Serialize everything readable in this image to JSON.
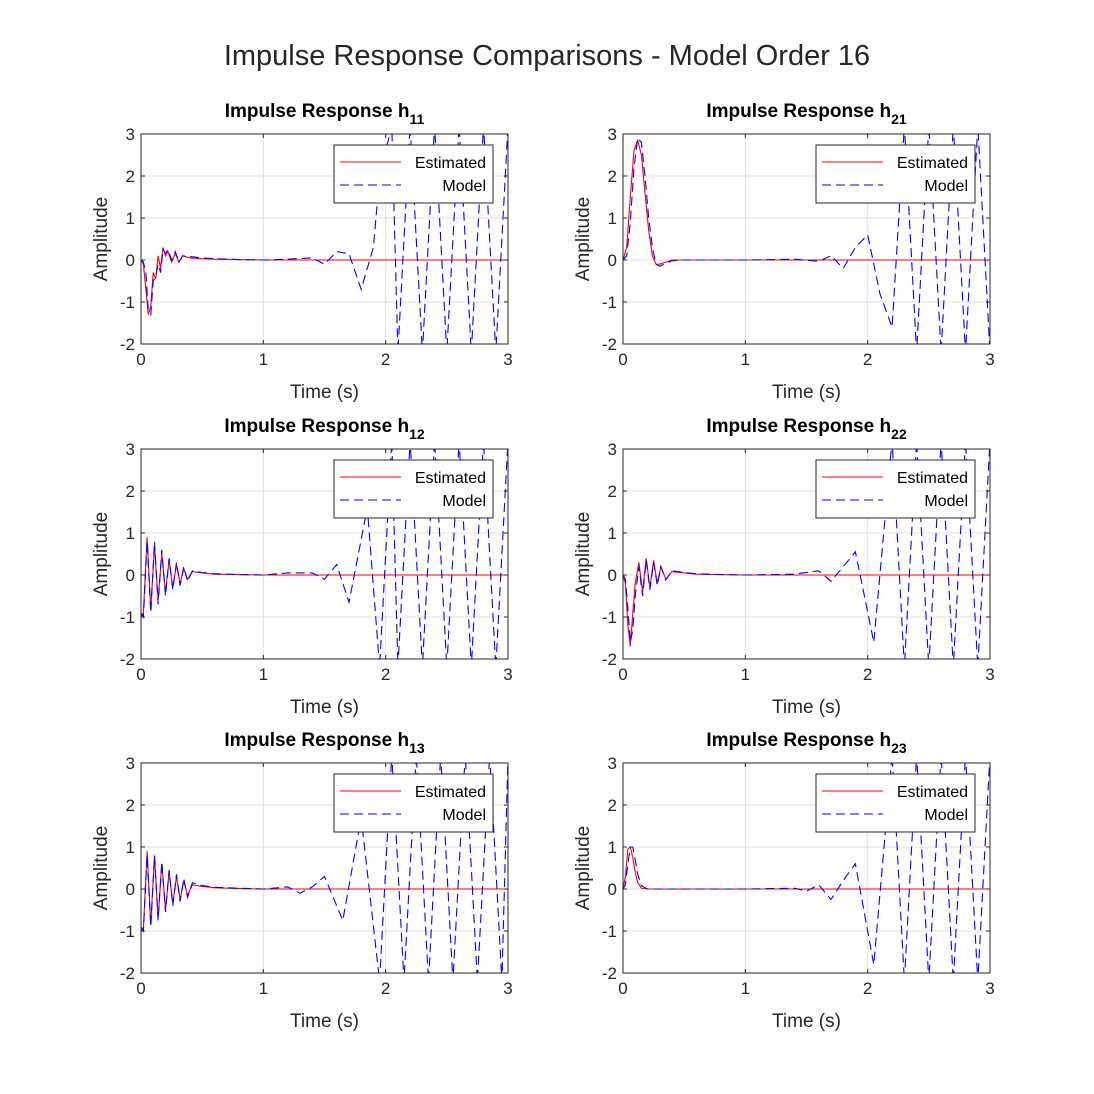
{
  "figure": {
    "title": "Impulse Response Comparisons - Model Order 16",
    "colors": {
      "estimated": "#ff0000",
      "model": "#0000ff",
      "grid": "#dfdfdf",
      "axis": "#262626"
    }
  },
  "chart_data": [
    {
      "type": "line",
      "title_main": "Impulse Response h",
      "title_sub": "11",
      "xlabel": "Time (s)",
      "ylabel": "Amplitude",
      "xlim": [
        0,
        3
      ],
      "ylim": [
        -2,
        3
      ],
      "xticks": [
        "0",
        "1",
        "2",
        "3"
      ],
      "yticks": [
        "-2",
        "-1",
        "0",
        "1",
        "2",
        "3"
      ],
      "grid": true,
      "legend": "top-right",
      "series": [
        {
          "name": "Estimated",
          "style": "solid",
          "color": "#ff0000",
          "x": [
            0,
            0.02,
            0.04,
            0.06,
            0.08,
            0.1,
            0.12,
            0.14,
            0.16,
            0.18,
            0.2,
            0.22,
            0.25,
            0.28,
            0.31,
            0.34,
            0.4,
            0.5,
            0.6,
            0.8,
            1.0,
            1.5,
            2.0,
            2.5,
            3.0
          ],
          "y": [
            0,
            -0.1,
            -0.7,
            -1.3,
            -1.1,
            -0.3,
            -0.45,
            0.1,
            -0.2,
            0.3,
            0.1,
            0.2,
            -0.05,
            0.15,
            -0.05,
            0.1,
            0.05,
            0.03,
            0.02,
            0.01,
            0,
            0,
            0,
            0,
            0
          ]
        },
        {
          "name": "Model",
          "style": "dashed",
          "color": "#0000ff",
          "x": [
            0,
            0.02,
            0.04,
            0.06,
            0.08,
            0.1,
            0.12,
            0.14,
            0.16,
            0.18,
            0.2,
            0.22,
            0.25,
            0.28,
            0.31,
            0.34,
            0.4,
            0.5,
            0.6,
            0.8,
            1.0,
            1.2,
            1.4,
            1.5,
            1.6,
            1.7,
            1.8,
            1.9,
            1.95,
            2.05,
            2.1,
            2.2,
            2.3,
            2.4,
            2.5,
            2.6,
            2.7,
            2.8,
            2.9,
            3.0
          ],
          "y": [
            0,
            -0.05,
            -0.3,
            -1.2,
            -1.3,
            -0.5,
            -0.4,
            -0.1,
            -0.3,
            0.25,
            0.15,
            0.25,
            0,
            0.2,
            -0.05,
            0.1,
            0.08,
            0.05,
            0.03,
            0.01,
            0,
            0.02,
            0.05,
            -0.1,
            0.2,
            0.15,
            -0.7,
            0.3,
            2.0,
            3.2,
            -2.2,
            3.2,
            -2.2,
            3.2,
            -2.2,
            3.2,
            -2.2,
            3.2,
            -2.2,
            3.2
          ]
        }
      ]
    },
    {
      "type": "line",
      "title_main": "Impulse Response h",
      "title_sub": "21",
      "xlabel": "Time (s)",
      "ylabel": "Amplitude",
      "xlim": [
        0,
        3
      ],
      "ylim": [
        -2,
        3
      ],
      "xticks": [
        "0",
        "1",
        "2",
        "3"
      ],
      "yticks": [
        "-2",
        "-1",
        "0",
        "1",
        "2",
        "3"
      ],
      "grid": true,
      "legend": "top-right",
      "series": [
        {
          "name": "Estimated",
          "style": "solid",
          "color": "#ff0000",
          "x": [
            0,
            0.03,
            0.06,
            0.09,
            0.12,
            0.15,
            0.18,
            0.21,
            0.24,
            0.27,
            0.3,
            0.35,
            0.4,
            0.5,
            1.0,
            1.5,
            2.0,
            2.5,
            3.0
          ],
          "y": [
            0,
            0.3,
            1.5,
            2.6,
            2.85,
            2.5,
            1.6,
            0.7,
            0.1,
            -0.1,
            -0.1,
            -0.05,
            0,
            0,
            0,
            0,
            0,
            0,
            0
          ]
        },
        {
          "name": "Model",
          "style": "dashed",
          "color": "#0000ff",
          "x": [
            0,
            0.03,
            0.06,
            0.09,
            0.12,
            0.15,
            0.18,
            0.21,
            0.24,
            0.27,
            0.3,
            0.35,
            0.4,
            0.5,
            1.0,
            1.4,
            1.6,
            1.7,
            1.8,
            1.9,
            2.0,
            2.1,
            2.2,
            2.3,
            2.4,
            2.5,
            2.6,
            2.7,
            2.8,
            2.9,
            3.0
          ],
          "y": [
            0,
            0.1,
            0.9,
            2.2,
            2.9,
            2.8,
            2.0,
            1.0,
            0.3,
            -0.1,
            -0.15,
            -0.08,
            -0.02,
            0,
            0,
            0.02,
            -0.03,
            0.1,
            -0.2,
            0.3,
            0.6,
            -0.8,
            -1.6,
            3.2,
            -2.2,
            3.2,
            -2.2,
            3.2,
            -2.2,
            3.2,
            -2.2
          ]
        }
      ]
    },
    {
      "type": "line",
      "title_main": "Impulse Response h",
      "title_sub": "12",
      "xlabel": "Time (s)",
      "ylabel": "Amplitude",
      "xlim": [
        0,
        3
      ],
      "ylim": [
        -2,
        3
      ],
      "xticks": [
        "0",
        "1",
        "2",
        "3"
      ],
      "yticks": [
        "-2",
        "-1",
        "0",
        "1",
        "2",
        "3"
      ],
      "grid": true,
      "legend": "top-right",
      "series": [
        {
          "name": "Estimated",
          "style": "solid",
          "color": "#ff0000",
          "x": [
            0,
            0.02,
            0.05,
            0.08,
            0.11,
            0.14,
            0.17,
            0.2,
            0.23,
            0.26,
            0.29,
            0.32,
            0.35,
            0.38,
            0.42,
            0.5,
            0.6,
            0.8,
            1.0,
            1.5,
            2.0,
            2.5,
            3.0
          ],
          "y": [
            -1.0,
            -0.9,
            0.9,
            -0.8,
            0.7,
            -0.6,
            0.5,
            -0.4,
            0.35,
            -0.3,
            0.25,
            -0.2,
            0.15,
            -0.1,
            0.08,
            0.05,
            0.02,
            0.01,
            0,
            0,
            0,
            0,
            0
          ]
        },
        {
          "name": "Model",
          "style": "dashed",
          "color": "#0000ff",
          "x": [
            0,
            0.02,
            0.05,
            0.08,
            0.11,
            0.14,
            0.17,
            0.2,
            0.23,
            0.26,
            0.29,
            0.32,
            0.35,
            0.38,
            0.42,
            0.5,
            0.6,
            0.8,
            1.0,
            1.2,
            1.4,
            1.5,
            1.6,
            1.7,
            1.85,
            1.95,
            2.05,
            2.1,
            2.2,
            2.3,
            2.4,
            2.5,
            2.6,
            2.7,
            2.8,
            2.9,
            3.0
          ],
          "y": [
            -0.9,
            -1.0,
            0.8,
            -0.9,
            0.8,
            -0.7,
            0.6,
            -0.5,
            0.4,
            -0.35,
            0.3,
            -0.25,
            0.2,
            -0.15,
            0.1,
            0.06,
            0.03,
            0.01,
            0,
            0.05,
            0.05,
            -0.1,
            0.25,
            -0.65,
            1.6,
            -2.2,
            3.2,
            -2.2,
            3.2,
            -2.2,
            3.2,
            -2.2,
            3.2,
            -2.2,
            3.2,
            -2.2,
            3.2
          ]
        }
      ]
    },
    {
      "type": "line",
      "title_main": "Impulse Response h",
      "title_sub": "22",
      "xlabel": "Time (s)",
      "ylabel": "Amplitude",
      "xlim": [
        0,
        3
      ],
      "ylim": [
        -2,
        3
      ],
      "xticks": [
        "0",
        "1",
        "2",
        "3"
      ],
      "yticks": [
        "-2",
        "-1",
        "0",
        "1",
        "2",
        "3"
      ],
      "grid": true,
      "legend": "top-right",
      "series": [
        {
          "name": "Estimated",
          "style": "solid",
          "color": "#ff0000",
          "x": [
            0,
            0.02,
            0.04,
            0.06,
            0.08,
            0.1,
            0.13,
            0.16,
            0.19,
            0.22,
            0.25,
            0.28,
            0.31,
            0.35,
            0.4,
            0.5,
            0.6,
            0.8,
            1.0,
            1.5,
            2.0,
            2.5,
            3.0
          ],
          "y": [
            0,
            -0.2,
            -1.2,
            -1.7,
            -0.9,
            -0.2,
            0.3,
            -0.4,
            0.4,
            -0.3,
            0.35,
            -0.2,
            0.2,
            -0.1,
            0.08,
            0.05,
            0.02,
            0.01,
            0,
            0,
            0,
            0,
            0
          ]
        },
        {
          "name": "Model",
          "style": "dashed",
          "color": "#0000ff",
          "x": [
            0,
            0.02,
            0.04,
            0.06,
            0.08,
            0.1,
            0.13,
            0.16,
            0.19,
            0.22,
            0.25,
            0.28,
            0.31,
            0.35,
            0.4,
            0.5,
            0.6,
            0.8,
            1.0,
            1.4,
            1.6,
            1.7,
            1.8,
            1.9,
            2.05,
            2.2,
            2.3,
            2.4,
            2.5,
            2.6,
            2.7,
            2.8,
            2.9,
            3.0
          ],
          "y": [
            0,
            -0.1,
            -0.8,
            -1.6,
            -1.3,
            -0.5,
            0.2,
            -0.5,
            0.35,
            -0.35,
            0.3,
            -0.25,
            0.2,
            -0.12,
            0.1,
            0.06,
            0.03,
            0.01,
            0,
            0.02,
            0.1,
            -0.15,
            0.2,
            0.55,
            -1.6,
            3.2,
            -2.2,
            3.2,
            -2.2,
            3.2,
            -2.2,
            3.2,
            -2.2,
            3.2
          ]
        }
      ]
    },
    {
      "type": "line",
      "title_main": "Impulse Response h",
      "title_sub": "13",
      "xlabel": "Time (s)",
      "ylabel": "Amplitude",
      "xlim": [
        0,
        3
      ],
      "ylim": [
        -2,
        3
      ],
      "xticks": [
        "0",
        "1",
        "2",
        "3"
      ],
      "yticks": [
        "-2",
        "-1",
        "0",
        "1",
        "2",
        "3"
      ],
      "grid": true,
      "legend": "top-right",
      "series": [
        {
          "name": "Estimated",
          "style": "solid",
          "color": "#ff0000",
          "x": [
            0,
            0.02,
            0.05,
            0.08,
            0.11,
            0.14,
            0.17,
            0.2,
            0.23,
            0.26,
            0.29,
            0.32,
            0.35,
            0.38,
            0.42,
            0.5,
            0.6,
            0.8,
            1.0,
            1.5,
            2.0,
            2.5,
            3.0
          ],
          "y": [
            -1.0,
            -0.95,
            0.9,
            -0.85,
            0.8,
            -0.7,
            0.6,
            -0.5,
            0.4,
            -0.35,
            0.3,
            -0.25,
            0.2,
            -0.15,
            0.1,
            0.06,
            0.03,
            0.01,
            0,
            0,
            0,
            0,
            0
          ]
        },
        {
          "name": "Model",
          "style": "dashed",
          "color": "#0000ff",
          "x": [
            0,
            0.02,
            0.05,
            0.08,
            0.11,
            0.14,
            0.17,
            0.2,
            0.23,
            0.26,
            0.29,
            0.32,
            0.35,
            0.38,
            0.42,
            0.5,
            0.6,
            0.8,
            1.0,
            1.2,
            1.3,
            1.4,
            1.5,
            1.65,
            1.8,
            1.95,
            2.05,
            2.15,
            2.25,
            2.35,
            2.45,
            2.55,
            2.65,
            2.75,
            2.85,
            2.95,
            3.0
          ],
          "y": [
            -0.9,
            -1.0,
            0.8,
            -0.9,
            0.8,
            -0.75,
            0.65,
            -0.55,
            0.45,
            -0.4,
            0.35,
            -0.3,
            0.25,
            -0.2,
            0.15,
            0.08,
            0.04,
            0.02,
            0,
            0.05,
            -0.1,
            0.05,
            0.3,
            -0.75,
            1.7,
            -2.2,
            3.2,
            -2.2,
            3.2,
            -2.2,
            3.2,
            -2.2,
            3.2,
            -2.2,
            3.2,
            -2.2,
            3.2
          ]
        }
      ]
    },
    {
      "type": "line",
      "title_main": "Impulse Response h",
      "title_sub": "23",
      "xlabel": "Time (s)",
      "ylabel": "Amplitude",
      "xlim": [
        0,
        3
      ],
      "ylim": [
        -2,
        3
      ],
      "xticks": [
        "0",
        "1",
        "2",
        "3"
      ],
      "yticks": [
        "-2",
        "-1",
        "0",
        "1",
        "2",
        "3"
      ],
      "grid": true,
      "legend": "top-right",
      "series": [
        {
          "name": "Estimated",
          "style": "solid",
          "color": "#ff0000",
          "x": [
            0,
            0.02,
            0.04,
            0.06,
            0.08,
            0.1,
            0.12,
            0.15,
            0.2,
            0.3,
            0.5,
            1.0,
            1.5,
            2.0,
            2.5,
            3.0
          ],
          "y": [
            0,
            0.3,
            0.95,
            1.0,
            0.75,
            0.4,
            0.15,
            0.02,
            0,
            0,
            0,
            0,
            0,
            0,
            0,
            0
          ]
        },
        {
          "name": "Model",
          "style": "dashed",
          "color": "#0000ff",
          "x": [
            0,
            0.02,
            0.04,
            0.06,
            0.08,
            0.1,
            0.12,
            0.15,
            0.2,
            0.3,
            0.5,
            1.0,
            1.4,
            1.5,
            1.6,
            1.7,
            1.8,
            1.9,
            2.05,
            2.2,
            2.3,
            2.4,
            2.5,
            2.6,
            2.7,
            2.8,
            2.9,
            3.0
          ],
          "y": [
            0,
            0.1,
            0.6,
            1.0,
            1.0,
            0.7,
            0.35,
            0.08,
            0,
            0,
            0,
            0,
            0.02,
            -0.05,
            0.1,
            -0.25,
            0.2,
            0.6,
            -1.8,
            3.2,
            -2.2,
            3.2,
            -2.2,
            3.2,
            -2.2,
            3.2,
            -2.2,
            3.2
          ]
        }
      ]
    }
  ]
}
